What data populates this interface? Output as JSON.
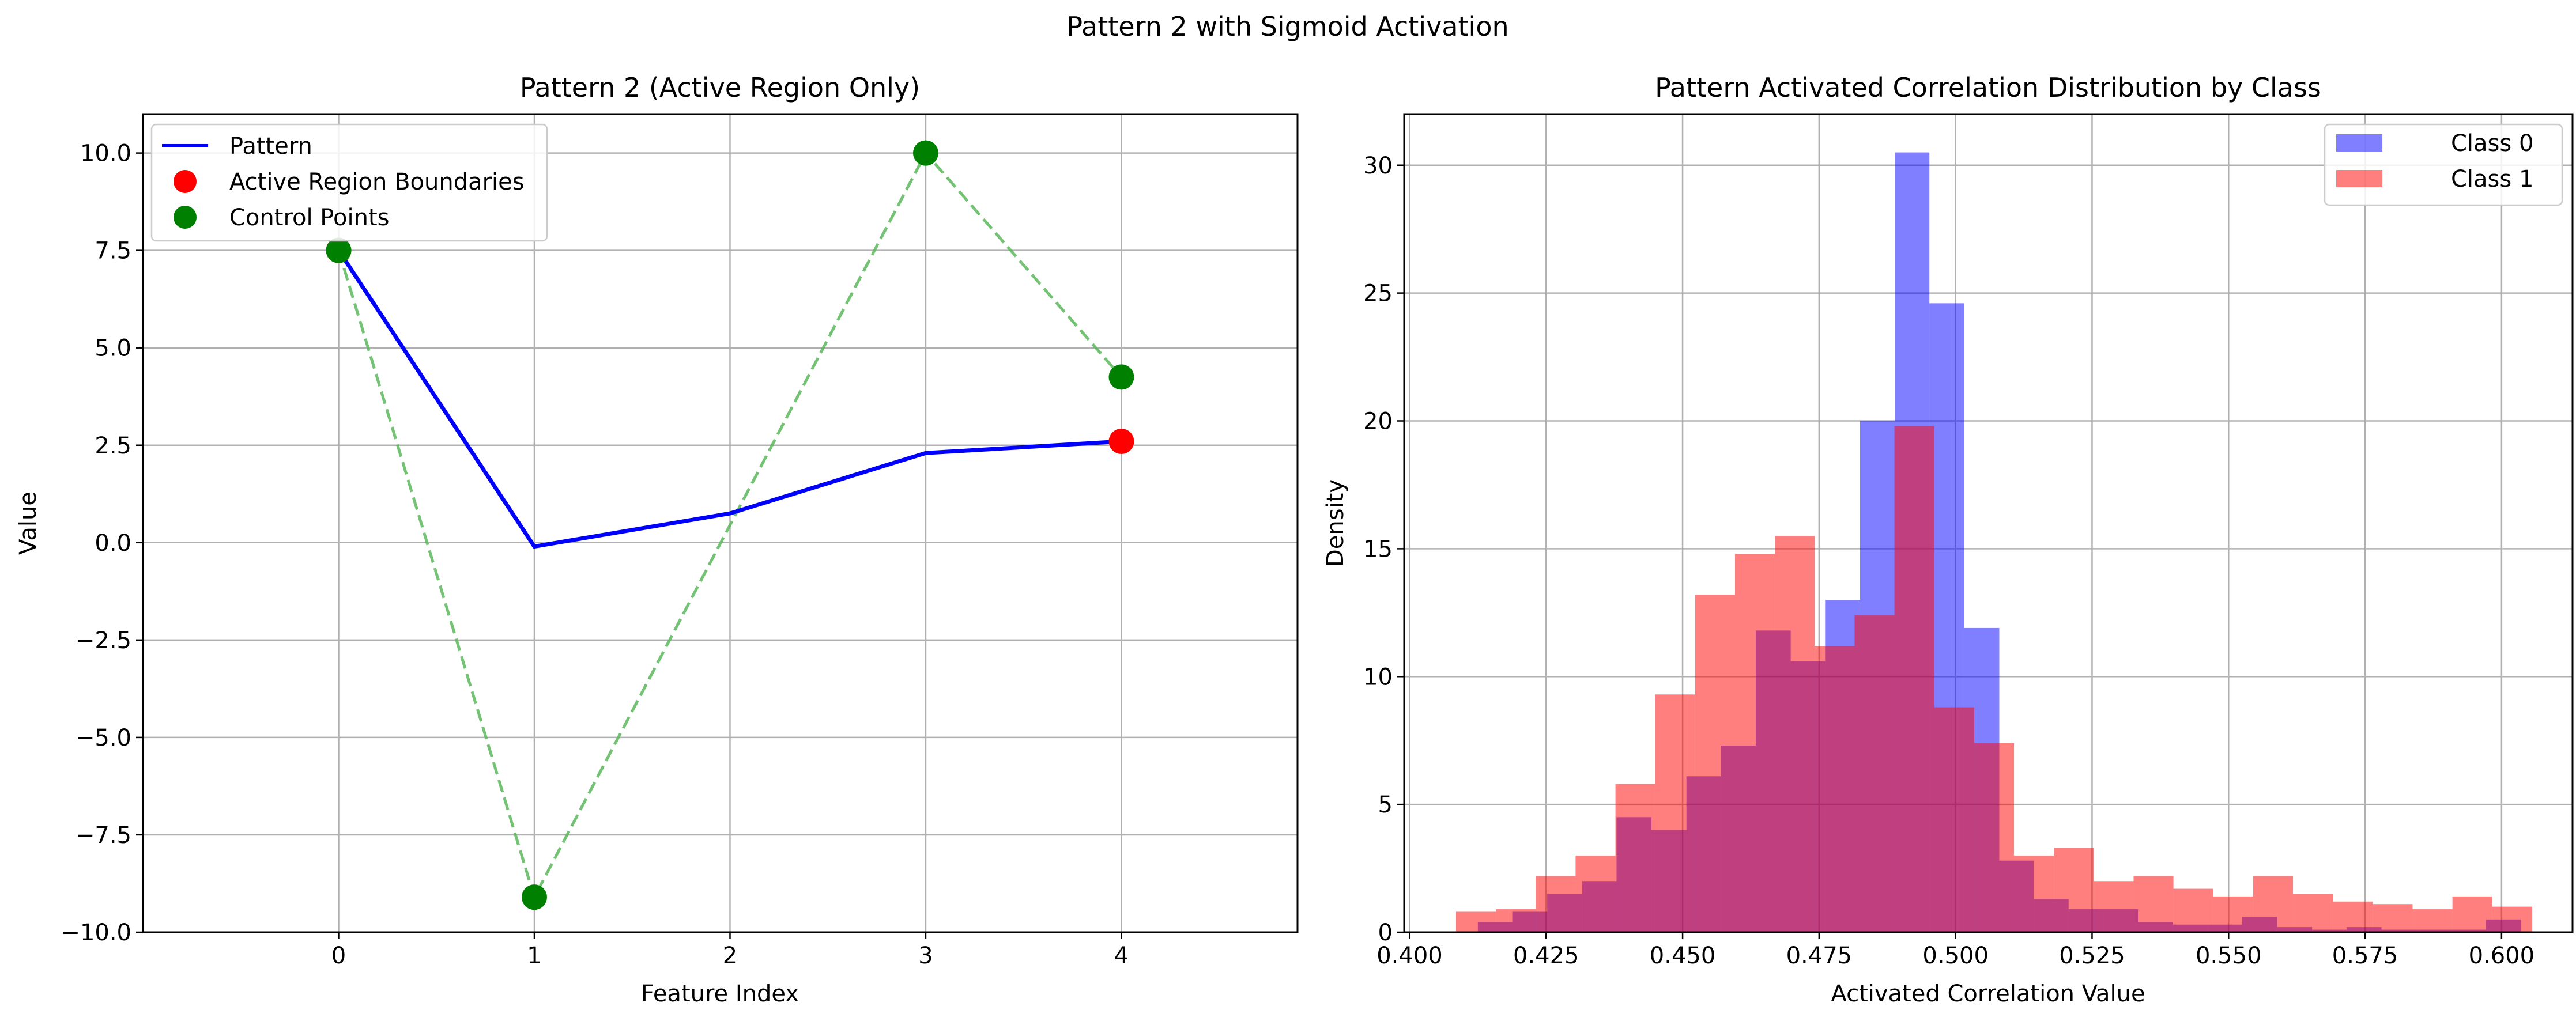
{
  "figure": {
    "suptitle": "Pattern 2 with Sigmoid Activation"
  },
  "chart_data": [
    {
      "type": "line",
      "title": "Pattern 2 (Active Region Only)",
      "xlabel": "Feature Index",
      "ylabel": "Value",
      "xlim": [
        -1,
        4.9
      ],
      "ylim": [
        -10,
        11
      ],
      "xticks": [
        0,
        1,
        2,
        3,
        4
      ],
      "xtick_labels": [
        "0",
        "1",
        "2",
        "3",
        "4"
      ],
      "yticks": [
        -10,
        -7.5,
        -5,
        -2.5,
        0,
        2.5,
        5,
        7.5,
        10
      ],
      "ytick_labels": [
        "−10.0",
        "−7.5",
        "−5.0",
        "−2.5",
        "0.0",
        "2.5",
        "5.0",
        "7.5",
        "10.0"
      ],
      "grid": true,
      "legend_position": "upper-left",
      "series": [
        {
          "name": "Pattern",
          "kind": "line",
          "color": "#0000ff",
          "x": [
            0,
            1,
            2,
            3,
            4
          ],
          "y": [
            7.5,
            -0.1,
            0.75,
            2.3,
            2.6
          ]
        },
        {
          "name": "Active Region Boundaries",
          "kind": "scatter",
          "color": "#ff0000",
          "x": [
            0,
            4
          ],
          "y": [
            7.5,
            2.6
          ]
        },
        {
          "name": "Control Points",
          "kind": "scatter",
          "color": "#008000",
          "x": [
            0,
            1,
            3,
            4
          ],
          "y": [
            7.5,
            -9.1,
            10.0,
            4.25
          ]
        },
        {
          "name": "",
          "kind": "dashed-line",
          "color": "#5cb85c",
          "x": [
            0,
            1,
            3,
            4
          ],
          "y": [
            7.5,
            -9.1,
            10.0,
            4.25
          ]
        }
      ]
    },
    {
      "type": "histogram",
      "title": "Pattern Activated Correlation Distribution by Class",
      "xlabel": "Activated Correlation Value",
      "ylabel": "Density",
      "xlim": [
        0.399,
        0.613
      ],
      "ylim": [
        0,
        32
      ],
      "xticks": [
        0.4,
        0.425,
        0.45,
        0.475,
        0.5,
        0.525,
        0.55,
        0.575,
        0.6
      ],
      "xtick_labels": [
        "0.400",
        "0.425",
        "0.450",
        "0.475",
        "0.500",
        "0.525",
        "0.550",
        "0.575",
        "0.600"
      ],
      "yticks": [
        0,
        5,
        10,
        15,
        20,
        25,
        30
      ],
      "ytick_labels": [
        "0",
        "5",
        "10",
        "15",
        "20",
        "25",
        "30"
      ],
      "grid": true,
      "legend_position": "upper-right",
      "series": [
        {
          "name": "Class 0",
          "color": "#0000ff",
          "opacity": 0.5,
          "edges": [
            0.4125,
            0.4188,
            0.4252,
            0.4316,
            0.4379,
            0.4443,
            0.4507,
            0.457,
            0.4634,
            0.4698,
            0.4761,
            0.4825,
            0.4889,
            0.4952,
            0.5016,
            0.508,
            0.5143,
            0.5207,
            0.5271,
            0.5334,
            0.5398,
            0.5462,
            0.5525,
            0.5589,
            0.5653,
            0.5716,
            0.578,
            0.5844,
            0.5907,
            0.5971,
            0.6035
          ],
          "values": [
            0.4,
            0.8,
            1.5,
            2.0,
            4.5,
            4.0,
            6.1,
            7.3,
            11.8,
            10.6,
            13.0,
            20.0,
            30.5,
            24.6,
            11.9,
            2.8,
            1.3,
            0.9,
            0.9,
            0.4,
            0.3,
            0.3,
            0.6,
            0.2,
            0.1,
            0.2,
            0.1,
            0.1,
            0.1,
            0.5
          ]
        },
        {
          "name": "Class 1",
          "color": "#ff0000",
          "opacity": 0.5,
          "edges": [
            0.4085,
            0.4158,
            0.4231,
            0.4304,
            0.4377,
            0.445,
            0.4523,
            0.4596,
            0.4669,
            0.4742,
            0.4815,
            0.4888,
            0.4961,
            0.5034,
            0.5107,
            0.518,
            0.5253,
            0.5326,
            0.5399,
            0.5472,
            0.5545,
            0.5618,
            0.5691,
            0.5764,
            0.5837,
            0.591,
            0.5983,
            0.6056
          ],
          "values": [
            0.8,
            0.9,
            2.2,
            3.0,
            5.8,
            9.3,
            13.2,
            14.8,
            15.5,
            11.2,
            12.4,
            19.8,
            8.8,
            7.4,
            3.0,
            3.3,
            2.0,
            2.2,
            1.7,
            1.4,
            2.2,
            1.5,
            1.2,
            1.1,
            0.9,
            1.4,
            1.0
          ]
        }
      ]
    }
  ]
}
